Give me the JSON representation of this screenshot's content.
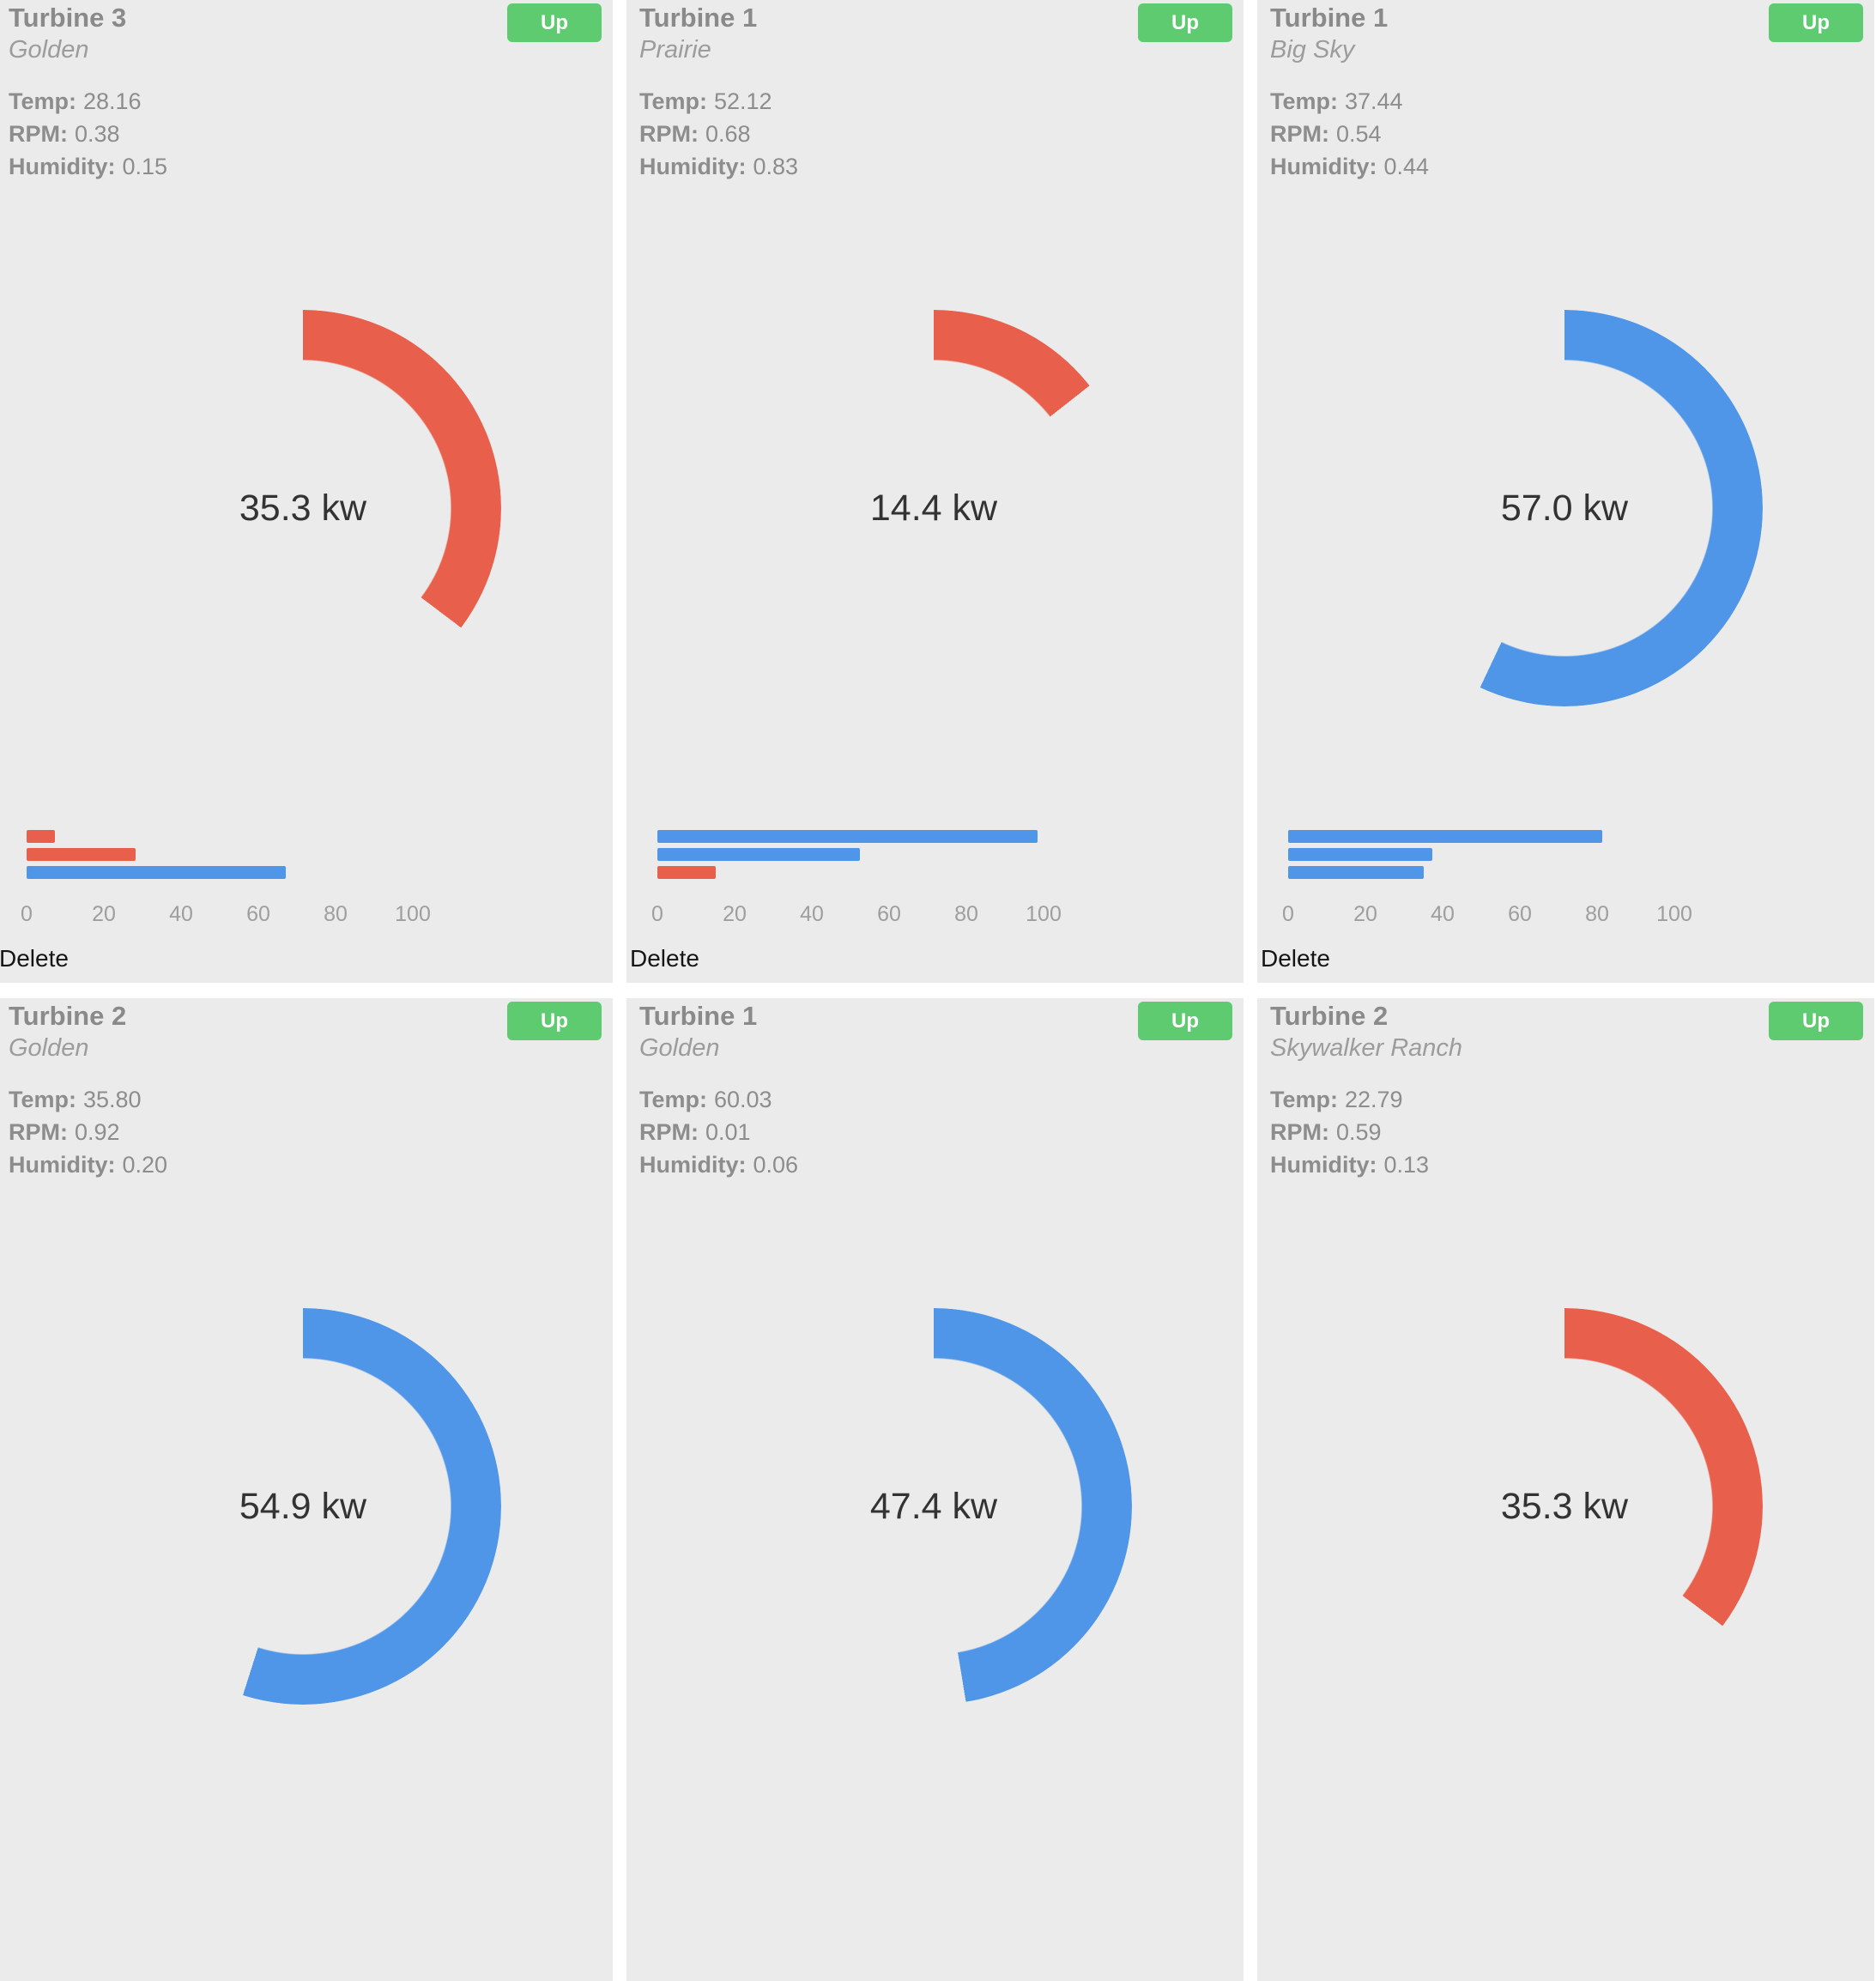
{
  "labels": {
    "up": "Up",
    "temp": "Temp:",
    "rpm": "RPM:",
    "humidity": "Humidity:"
  },
  "colors": {
    "red": "#e8604c",
    "blue": "#4f96e8",
    "green": "#5ecb71",
    "card_bg": "#ebebeb",
    "page_bg": "#ffffff",
    "gauge_text": "#333333",
    "tick_text": "#9e9e9e"
  },
  "axis": {
    "ticks": [
      0,
      20,
      40,
      60,
      80,
      100
    ],
    "max": 100
  },
  "cards": [
    {
      "title": "Turbine 3",
      "location": "Golden",
      "temp": "28.16",
      "rpm": "0.38",
      "humidity": "0.15",
      "power_kw": 35.3,
      "power_text": "35.3 kw",
      "gauge_color": "red",
      "show_axis": true,
      "delete_label": "Delete",
      "bars": [
        {
          "value": 7.3,
          "color": "red"
        },
        {
          "value": 28.2,
          "color": "red"
        },
        {
          "value": 67.0,
          "color": "blue"
        }
      ]
    },
    {
      "title": "Turbine 1",
      "location": "Prairie",
      "temp": "52.12",
      "rpm": "0.68",
      "humidity": "0.83",
      "power_kw": 14.4,
      "power_text": "14.4 kw",
      "gauge_color": "red",
      "show_axis": true,
      "delete_label": "Delete",
      "bars": [
        {
          "value": 98.4,
          "color": "blue"
        },
        {
          "value": 52.4,
          "color": "blue"
        },
        {
          "value": 15.1,
          "color": "red"
        }
      ]
    },
    {
      "title": "Turbine 1",
      "location": "Big Sky",
      "temp": "37.44",
      "rpm": "0.54",
      "humidity": "0.44",
      "power_kw": 57.0,
      "power_text": "57.0 kw",
      "gauge_color": "blue",
      "show_axis": true,
      "delete_label": "Delete",
      "bars": [
        {
          "value": 81.3,
          "color": "blue"
        },
        {
          "value": 37.4,
          "color": "blue"
        },
        {
          "value": 35.0,
          "color": "blue"
        }
      ]
    },
    {
      "title": "Turbine 2",
      "location": "Golden",
      "temp": "35.80",
      "rpm": "0.92",
      "humidity": "0.20",
      "power_kw": 54.9,
      "power_text": "54.9 kw",
      "gauge_color": "blue",
      "show_axis": false,
      "bars": []
    },
    {
      "title": "Turbine 1",
      "location": "Golden",
      "temp": "60.03",
      "rpm": "0.01",
      "humidity": "0.06",
      "power_kw": 47.4,
      "power_text": "47.4 kw",
      "gauge_color": "blue",
      "show_axis": false,
      "bars": []
    },
    {
      "title": "Turbine 2",
      "location": "Skywalker Ranch",
      "temp": "22.79",
      "rpm": "0.59",
      "humidity": "0.13",
      "power_kw": 35.3,
      "power_text": "35.3 kw",
      "gauge_color": "red",
      "show_axis": false,
      "bars": []
    }
  ]
}
